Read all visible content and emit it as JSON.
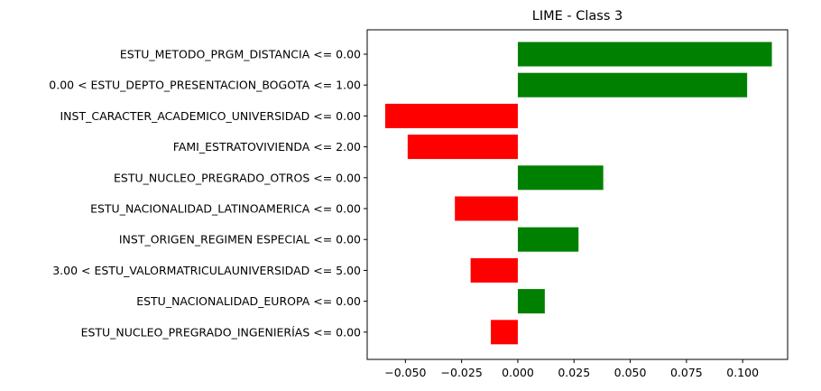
{
  "chart_data": {
    "type": "bar",
    "orientation": "horizontal",
    "title": "LIME - Class 3",
    "xlabel": "",
    "ylabel": "",
    "xlim": [
      -0.067,
      0.12
    ],
    "xticks": [
      -0.05,
      -0.025,
      0.0,
      0.025,
      0.05,
      0.075,
      0.1
    ],
    "xtick_labels": [
      "−0.050",
      "−0.025",
      "0.000",
      "0.025",
      "0.050",
      "0.075",
      "0.100"
    ],
    "grid": false,
    "colors": {
      "positive": "#008000",
      "negative": "#ff0000"
    },
    "categories": [
      "ESTU_METODO_PRGM_DISTANCIA <= 0.00",
      "0.00 < ESTU_DEPTO_PRESENTACION_BOGOTA <= 1.00",
      "INST_CARACTER_ACADEMICO_UNIVERSIDAD <= 0.00",
      "FAMI_ESTRATOVIVIENDA <= 2.00",
      "ESTU_NUCLEO_PREGRADO_OTROS <= 0.00",
      "ESTU_NACIONALIDAD_LATINOAMERICA <= 0.00",
      "INST_ORIGEN_REGIMEN ESPECIAL <= 0.00",
      "3.00 < ESTU_VALORMATRICULAUNIVERSIDAD <= 5.00",
      "ESTU_NACIONALIDAD_EUROPA <= 0.00",
      "ESTU_NUCLEO_PREGRADO_INGENIERÍAS <= 0.00"
    ],
    "values": [
      0.113,
      0.102,
      -0.059,
      -0.049,
      0.038,
      -0.028,
      0.027,
      -0.021,
      0.012,
      -0.012
    ]
  }
}
